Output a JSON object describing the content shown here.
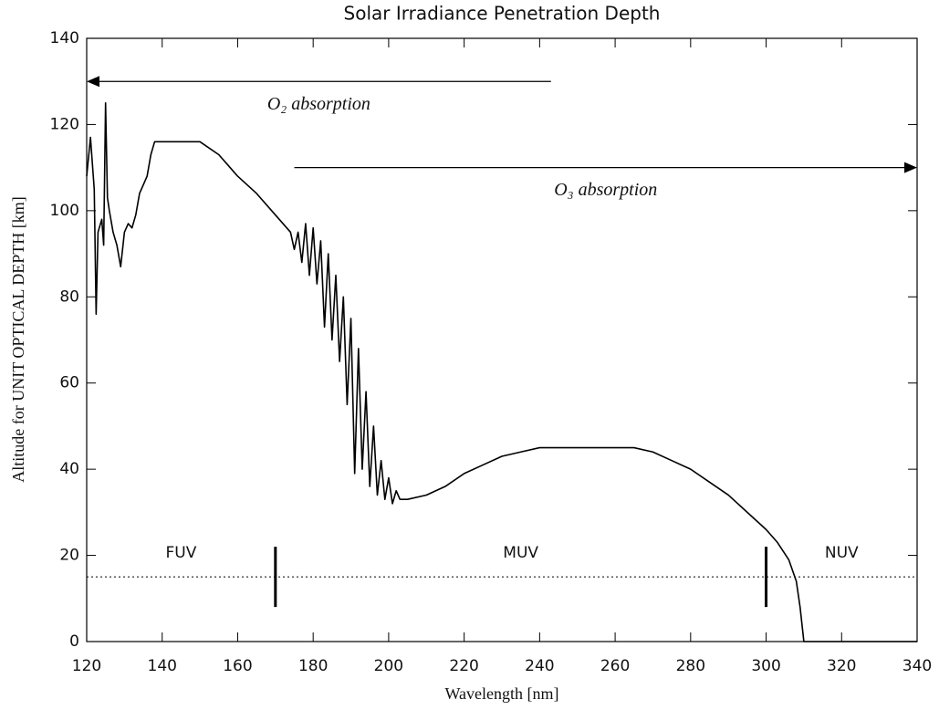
{
  "chart_data": {
    "type": "line",
    "title": "Solar Irradiance Penetration Depth",
    "x_label": "Wavelength [nm]",
    "y_label": "Altitude for UNIT OPTICAL DEPTH [km]",
    "color": "#000000",
    "x": [
      120,
      121,
      122,
      122.5,
      123,
      124,
      124.5,
      125,
      125.5,
      126,
      127,
      128,
      129,
      130,
      131,
      132,
      133,
      134,
      135,
      136,
      137,
      138,
      140,
      150,
      155,
      160,
      165,
      170,
      174,
      175,
      176,
      177,
      178,
      179,
      180,
      181,
      182,
      183,
      184,
      185,
      186,
      187,
      188,
      189,
      190,
      191,
      192,
      193,
      194,
      195,
      196,
      197,
      198,
      199,
      200,
      201,
      202,
      203,
      205,
      210,
      215,
      220,
      225,
      230,
      235,
      240,
      250,
      265,
      270,
      275,
      280,
      285,
      290,
      295,
      300,
      303,
      306,
      308,
      309,
      310,
      320,
      340
    ],
    "values": [
      108,
      117,
      105,
      76,
      95,
      98,
      92,
      125,
      103,
      100,
      95,
      92,
      87,
      95,
      97,
      96,
      99,
      104,
      106,
      108,
      113,
      116,
      116,
      116,
      113,
      108,
      104,
      99,
      95,
      91,
      95,
      88,
      97,
      85,
      96,
      83,
      93,
      73,
      90,
      70,
      85,
      65,
      80,
      55,
      75,
      39,
      68,
      40,
      58,
      36,
      50,
      34,
      42,
      33,
      38,
      32,
      35,
      33,
      33,
      34,
      36,
      39,
      41,
      43,
      44,
      45,
      45,
      45,
      44,
      42,
      40,
      37,
      34,
      30,
      26,
      23,
      19,
      14,
      8,
      0,
      0,
      0
    ],
    "xlim": [
      120,
      340
    ],
    "ylim": [
      0,
      140
    ],
    "xticks": [
      120,
      140,
      160,
      180,
      200,
      220,
      240,
      260,
      280,
      300,
      320,
      340
    ],
    "yticks": [
      0,
      20,
      40,
      60,
      80,
      100,
      120,
      140
    ],
    "annotations": [
      {
        "label": "O₂ absorption",
        "from": 243,
        "to": 120,
        "y": 130
      },
      {
        "label": "O₃ absorption",
        "from": 175,
        "to": 340,
        "y": 110
      }
    ],
    "reference_line": 15,
    "boundaries": [
      170,
      300
    ],
    "regions": [
      "FUV",
      "MUV",
      "NUV"
    ]
  }
}
